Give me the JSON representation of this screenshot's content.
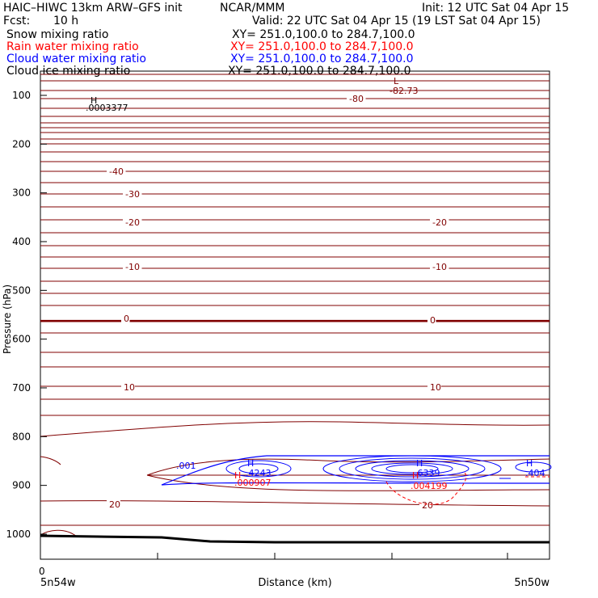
{
  "header": {
    "model": "HAIC–HIWC 13km ARW–GFS init",
    "org": "NCAR/MMM",
    "init": "Init: 12 UTC Sat 04 Apr 15",
    "fcst_label": "Fcst:",
    "fcst_value": "10 h",
    "valid": "Valid: 22 UTC Sat 04 Apr 15 (19 LST Sat 04 Apr 15)"
  },
  "legend": [
    {
      "name": "Snow mixing ratio",
      "xy": "XY= 251.0,100.0 to 284.7,100.0",
      "color": "#000000"
    },
    {
      "name": "Rain water mixing ratio",
      "xy": "XY= 251.0,100.0 to 284.7,100.0",
      "color": "#ff0000"
    },
    {
      "name": "Cloud water mixing ratio",
      "xy": "XY= 251.0,100.0 to 284.7,100.0",
      "color": "#0000ff"
    },
    {
      "name": "Cloud ice mixing ratio",
      "xy": "XY= 251.0,100.0 to 284.7,100.0",
      "color": "#000000"
    }
  ],
  "chart_data": {
    "type": "line",
    "xlabel": "Distance (km)",
    "ylabel": "Pressure (hPa)",
    "y_ticks": [
      100,
      200,
      300,
      400,
      500,
      600,
      700,
      800,
      900,
      1000
    ],
    "ylim": [
      1050,
      50
    ],
    "x_zero_label": "0",
    "x_left_label": "5n54w",
    "x_right_label": "5n50w",
    "temperature_contour_labels": [
      "-80",
      "-40",
      "-30",
      "-20",
      "-20",
      "-10",
      "-10",
      "0",
      "0",
      "10",
      "10",
      "20",
      "20"
    ],
    "annotations": [
      {
        "text": "L",
        "color": "#800000"
      },
      {
        "text": "-82.73",
        "color": "#800000"
      },
      {
        "text": "H",
        "color": "#000000"
      },
      {
        "text": ".0003377",
        "color": "#000000"
      },
      {
        "text": ".001",
        "color": "#0000ff"
      },
      {
        "text": "H",
        "color": "#0000ff"
      },
      {
        "text": ".4243",
        "color": "#0000ff"
      },
      {
        "text": "H",
        "color": "#ff0000"
      },
      {
        "text": ".000907",
        "color": "#ff0000"
      },
      {
        "text": "H",
        "color": "#0000ff"
      },
      {
        "text": ".6339",
        "color": "#0000ff"
      },
      {
        "text": "H",
        "color": "#ff0000"
      },
      {
        "text": ".004199",
        "color": "#ff0000"
      },
      {
        "text": "H",
        "color": "#0000ff"
      },
      {
        "text": ".404",
        "color": "#0000ff"
      }
    ],
    "colors": {
      "temperature": "#800000",
      "rain": "#ff0000",
      "cloud_water": "#0000ff",
      "terrain": "#000000"
    }
  }
}
